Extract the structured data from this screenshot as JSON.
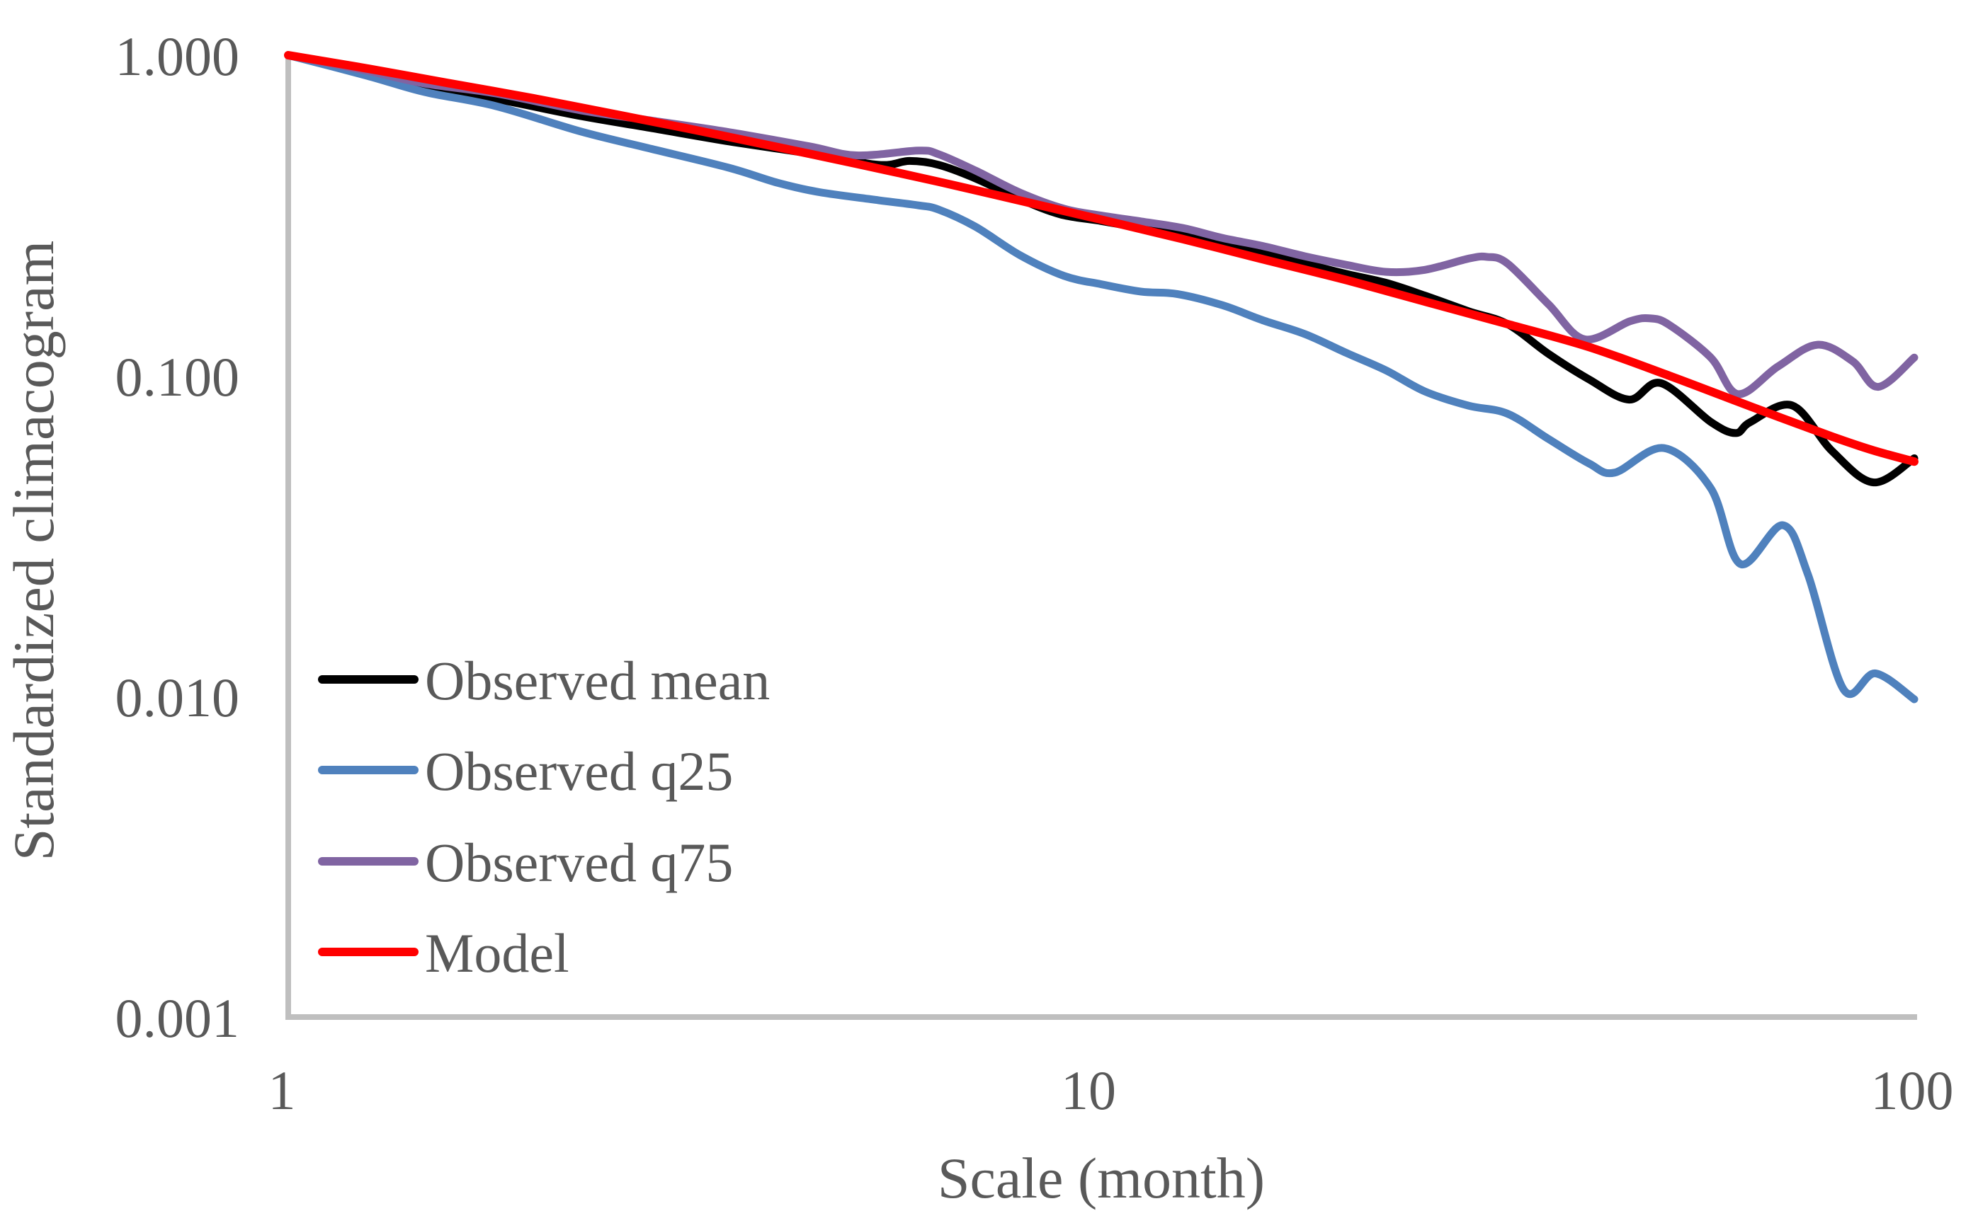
{
  "chart_data": {
    "type": "line",
    "title": "",
    "xlabel": "Scale (month)",
    "ylabel": "Standardized climacogram",
    "grid": false,
    "legend_position": "inside-lower-left",
    "x_axis": {
      "scale": "log",
      "min": 1,
      "max": 100,
      "tick_values": [
        1,
        10,
        100
      ],
      "tick_labels": [
        "1",
        "10",
        "100"
      ]
    },
    "y_axis": {
      "scale": "log",
      "min": 0.001,
      "max": 1.0,
      "tick_values": [
        1.0,
        0.1,
        0.01,
        0.001
      ],
      "tick_labels": [
        "1.000",
        "0.100",
        "0.010",
        "0.001"
      ]
    },
    "series": [
      {
        "name": "Observed mean",
        "color": "#000000",
        "stroke_width": 11,
        "points": [
          [
            1,
            1.0
          ],
          [
            1.25,
            0.878
          ],
          [
            1.47,
            0.796
          ],
          [
            1.8,
            0.73
          ],
          [
            2.29,
            0.646
          ],
          [
            2.8,
            0.592
          ],
          [
            3.49,
            0.538
          ],
          [
            4.37,
            0.494
          ],
          [
            5.32,
            0.455
          ],
          [
            5.81,
            0.468
          ],
          [
            6.31,
            0.455
          ],
          [
            7,
            0.413
          ],
          [
            7.94,
            0.356
          ],
          [
            8.9,
            0.319
          ],
          [
            10,
            0.304
          ],
          [
            11.2,
            0.289
          ],
          [
            12.6,
            0.276
          ],
          [
            14.1,
            0.259
          ],
          [
            15.8,
            0.242
          ],
          [
            17.8,
            0.224
          ],
          [
            20,
            0.208
          ],
          [
            22.4,
            0.195
          ],
          [
            25,
            0.178
          ],
          [
            28.3,
            0.159
          ],
          [
            31.6,
            0.145
          ],
          [
            35.5,
            0.117
          ],
          [
            39.8,
            0.0975
          ],
          [
            44.6,
            0.0843
          ],
          [
            48.8,
            0.0949
          ],
          [
            56.2,
            0.0718
          ],
          [
            60.3,
            0.0663
          ],
          [
            62.9,
            0.0718
          ],
          [
            70.8,
            0.0808
          ],
          [
            79.3,
            0.0581
          ],
          [
            89.1,
            0.0465
          ],
          [
            100,
            0.0553
          ]
        ]
      },
      {
        "name": "Observed q25",
        "color": "#4F81BD",
        "stroke_width": 11,
        "points": [
          [
            1,
            1.0
          ],
          [
            1.25,
            0.863
          ],
          [
            1.47,
            0.768
          ],
          [
            1.8,
            0.694
          ],
          [
            2.29,
            0.578
          ],
          [
            2.8,
            0.51
          ],
          [
            3.49,
            0.445
          ],
          [
            4,
            0.4
          ],
          [
            4.5,
            0.374
          ],
          [
            5.32,
            0.353
          ],
          [
            5.96,
            0.34
          ],
          [
            6.31,
            0.33
          ],
          [
            7,
            0.292
          ],
          [
            7.94,
            0.238
          ],
          [
            9,
            0.205
          ],
          [
            10,
            0.193
          ],
          [
            11.2,
            0.183
          ],
          [
            12.4,
            0.18
          ],
          [
            14.1,
            0.166
          ],
          [
            15.8,
            0.149
          ],
          [
            17.8,
            0.135
          ],
          [
            20,
            0.118
          ],
          [
            22.4,
            0.104
          ],
          [
            25,
            0.0894
          ],
          [
            28.3,
            0.0807
          ],
          [
            31.6,
            0.0762
          ],
          [
            35.5,
            0.0635
          ],
          [
            39.8,
            0.0533
          ],
          [
            42.8,
            0.0499
          ],
          [
            49.2,
            0.0595
          ],
          [
            56.2,
            0.0446
          ],
          [
            61.1,
            0.0259
          ],
          [
            68.9,
            0.0342
          ],
          [
            74,
            0.024
          ],
          [
            81.9,
            0.0105
          ],
          [
            89.6,
            0.0118
          ],
          [
            100,
            0.0098
          ]
        ]
      },
      {
        "name": "Observed q75",
        "color": "#8064A2",
        "stroke_width": 11,
        "points": [
          [
            1,
            1.0
          ],
          [
            1.25,
            0.894
          ],
          [
            1.47,
            0.816
          ],
          [
            1.8,
            0.76
          ],
          [
            2.29,
            0.673
          ],
          [
            2.8,
            0.625
          ],
          [
            3.49,
            0.575
          ],
          [
            4.37,
            0.52
          ],
          [
            5,
            0.487
          ],
          [
            5.96,
            0.504
          ],
          [
            6.31,
            0.491
          ],
          [
            7,
            0.437
          ],
          [
            7.94,
            0.373
          ],
          [
            9,
            0.332
          ],
          [
            10,
            0.316
          ],
          [
            11.2,
            0.303
          ],
          [
            12.6,
            0.289
          ],
          [
            14.1,
            0.269
          ],
          [
            15.8,
            0.254
          ],
          [
            17.8,
            0.236
          ],
          [
            20,
            0.222
          ],
          [
            22.4,
            0.211
          ],
          [
            25,
            0.214
          ],
          [
            28.3,
            0.232
          ],
          [
            29.8,
            0.235
          ],
          [
            31.6,
            0.224
          ],
          [
            35.5,
            0.167
          ],
          [
            39.3,
            0.13
          ],
          [
            44.7,
            0.148
          ],
          [
            47.4,
            0.151
          ],
          [
            50,
            0.144
          ],
          [
            56.2,
            0.114
          ],
          [
            60.7,
            0.0877
          ],
          [
            68,
            0.107
          ],
          [
            76,
            0.125
          ],
          [
            84,
            0.111
          ],
          [
            90.3,
            0.0924
          ],
          [
            100,
            0.114
          ]
        ]
      },
      {
        "name": "Model",
        "color": "#FF0000",
        "stroke_width": 12,
        "points": [
          [
            1,
            1.0
          ],
          [
            1.26,
            0.906
          ],
          [
            1.58,
            0.817
          ],
          [
            2,
            0.734
          ],
          [
            2.51,
            0.656
          ],
          [
            3.16,
            0.585
          ],
          [
            3.98,
            0.518
          ],
          [
            5.01,
            0.458
          ],
          [
            6.31,
            0.403
          ],
          [
            7.94,
            0.352
          ],
          [
            10,
            0.307
          ],
          [
            12.6,
            0.267
          ],
          [
            15.8,
            0.231
          ],
          [
            20,
            0.199
          ],
          [
            25.1,
            0.17
          ],
          [
            31.6,
            0.145
          ],
          [
            39.8,
            0.123
          ],
          [
            50,
            0.1
          ],
          [
            63.1,
            0.08
          ],
          [
            79.4,
            0.0645
          ],
          [
            89.1,
            0.0585
          ],
          [
            100,
            0.054
          ]
        ]
      }
    ]
  },
  "colors": {
    "text": "#595959",
    "axis_line": "#BFBFBF",
    "background": "#FFFFFF"
  }
}
